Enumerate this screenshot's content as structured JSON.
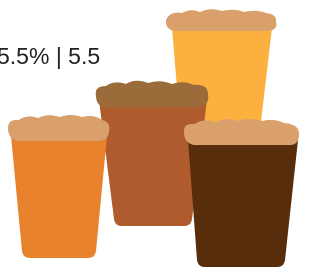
{
  "header": {
    "text": "5.5% | 5.5"
  }
}
